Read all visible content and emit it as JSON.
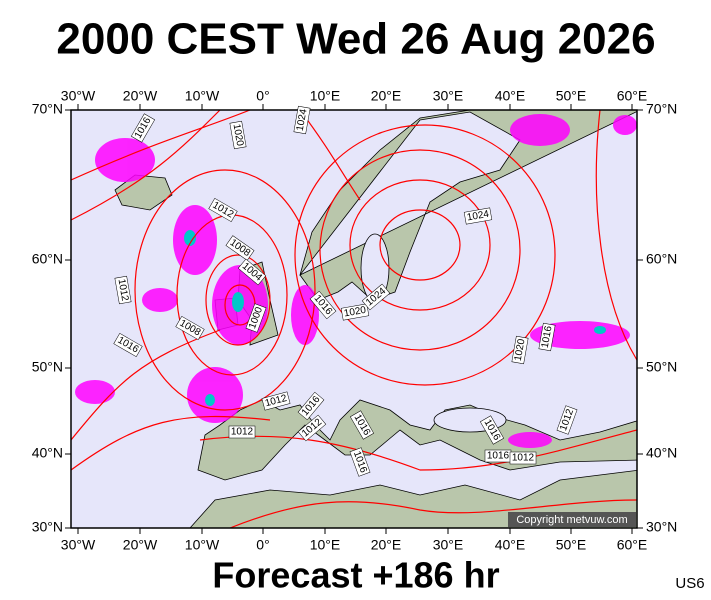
{
  "title": "2000 CEST Wed 26 Aug 2026",
  "footer": "Forecast +186 hr",
  "code": "US6",
  "copyright": "Copyright metvuw.com",
  "longitude_labels": [
    "30°W",
    "20°W",
    "10°W",
    "0°",
    "10°E",
    "20°E",
    "30°E",
    "40°E",
    "50°E",
    "60°E"
  ],
  "latitude_labels": [
    "70°N",
    "60°N",
    "50°N",
    "40°N",
    "30°N"
  ],
  "isobar_labels": [
    "1016",
    "1020",
    "1024",
    "1012",
    "1008",
    "1004",
    "1000",
    "1012",
    "1008",
    "1016",
    "1016",
    "1020",
    "1024",
    "1024",
    "1020",
    "1016",
    "1012",
    "1016",
    "1012",
    "1012",
    "1016",
    "1016",
    "1016",
    "1016",
    "1012",
    "1012"
  ]
}
